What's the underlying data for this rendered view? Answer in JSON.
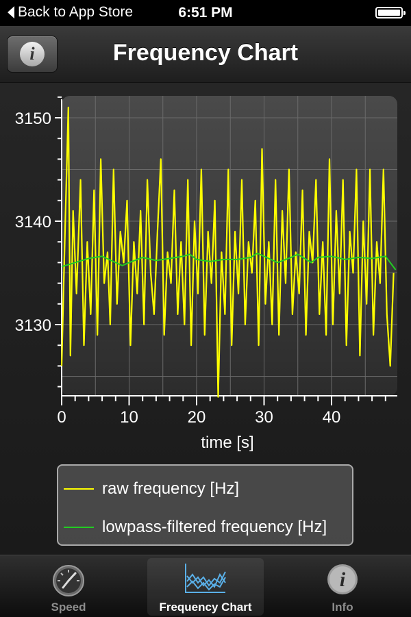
{
  "status_bar": {
    "back_label": "Back to App Store",
    "time": "6:51 PM"
  },
  "navbar": {
    "title": "Frequency Chart",
    "info_button_icon": "info-icon"
  },
  "chart_data": {
    "type": "line",
    "xlabel": "time [s]",
    "ylabel": "",
    "xlim": [
      0,
      49.5
    ],
    "ylim": [
      3123,
      3152
    ],
    "x_ticks": [
      0,
      10,
      20,
      30,
      40
    ],
    "y_ticks": [
      3130,
      3140,
      3150
    ],
    "grid": true,
    "legend_position": "bottom",
    "series": [
      {
        "name": "raw frequency [Hz]",
        "color": "#ffff00",
        "x": [
          0,
          0.5,
          1,
          1.3,
          1.7,
          2.2,
          2.8,
          3.3,
          3.8,
          4.3,
          4.8,
          5.3,
          5.8,
          6.3,
          6.8,
          7.2,
          7.7,
          8.2,
          8.7,
          9.2,
          9.7,
          10.2,
          10.7,
          11.2,
          11.7,
          12.2,
          12.7,
          13.2,
          13.7,
          14.2,
          14.7,
          15.2,
          15.7,
          16.2,
          16.7,
          17.2,
          17.7,
          18.2,
          18.7,
          19.2,
          19.7,
          20.2,
          20.7,
          21.2,
          21.7,
          22.2,
          22.7,
          23.2,
          23.7,
          24.2,
          24.7,
          25.2,
          25.7,
          26.2,
          26.7,
          27.2,
          27.7,
          28.2,
          28.7,
          29.2,
          29.7,
          30.2,
          30.7,
          31.2,
          31.7,
          32.2,
          32.7,
          33.2,
          33.7,
          34.2,
          34.7,
          35.2,
          35.7,
          36.2,
          36.7,
          37.2,
          37.7,
          38.2,
          38.7,
          39.2,
          39.7,
          40.2,
          40.7,
          41.2,
          41.7,
          42.2,
          42.7,
          43.2,
          43.7,
          44.2,
          44.7,
          45.2,
          45.7,
          46.2,
          46.7,
          47.2,
          47.7,
          48.2,
          48.7,
          49.2
        ],
        "values": [
          3126,
          3139,
          3151,
          3127,
          3141,
          3133,
          3144,
          3128,
          3138,
          3131,
          3143,
          3129,
          3146,
          3134,
          3137,
          3130,
          3145,
          3132,
          3139,
          3136,
          3142,
          3128,
          3138,
          3133,
          3141,
          3130,
          3144,
          3135,
          3131,
          3139,
          3146,
          3129,
          3137,
          3134,
          3143,
          3131,
          3138,
          3130,
          3144,
          3128,
          3140,
          3133,
          3145,
          3129,
          3139,
          3134,
          3142,
          3123,
          3137,
          3131,
          3145,
          3128,
          3139,
          3133,
          3144,
          3130,
          3138,
          3135,
          3142,
          3128,
          3147,
          3132,
          3138,
          3130,
          3144,
          3129,
          3141,
          3134,
          3145,
          3131,
          3137,
          3133,
          3143,
          3129,
          3139,
          3136,
          3144,
          3131,
          3138,
          3129,
          3146,
          3130,
          3141,
          3133,
          3144,
          3128,
          3139,
          3135,
          3145,
          3127,
          3140,
          3132,
          3145,
          3129,
          3138,
          3134,
          3145,
          3131,
          3126,
          3135
        ]
      },
      {
        "name": "lowpass-filtered frequency [Hz]",
        "color": "#22cc22",
        "x": [
          0,
          2,
          4,
          6,
          8,
          9,
          10,
          12,
          14,
          16,
          18,
          19,
          20,
          22,
          24,
          26,
          28,
          29,
          30,
          32,
          34,
          35,
          36,
          37,
          38,
          40,
          42,
          44,
          46,
          48,
          49.5
        ],
        "values": [
          3135.6,
          3136.0,
          3136.4,
          3136.6,
          3136.0,
          3135.7,
          3136.0,
          3136.5,
          3136.2,
          3136.4,
          3136.6,
          3136.8,
          3136.3,
          3136.1,
          3136.3,
          3136.3,
          3136.5,
          3136.9,
          3136.6,
          3136.0,
          3136.5,
          3136.8,
          3136.4,
          3136.0,
          3136.5,
          3136.6,
          3136.3,
          3136.5,
          3136.4,
          3136.6,
          3135.3
        ]
      }
    ]
  },
  "legend": {
    "items": [
      {
        "label": "raw frequency [Hz]",
        "color": "#ffff00"
      },
      {
        "label": "lowpass-filtered frequency [Hz]",
        "color": "#22cc22"
      }
    ]
  },
  "tabbar": {
    "tabs": [
      {
        "label": "Speed",
        "icon": "speedometer-icon",
        "active": false
      },
      {
        "label": "Frequency Chart",
        "icon": "chart-icon",
        "active": true
      },
      {
        "label": "Info",
        "icon": "info-icon",
        "active": false
      }
    ]
  }
}
